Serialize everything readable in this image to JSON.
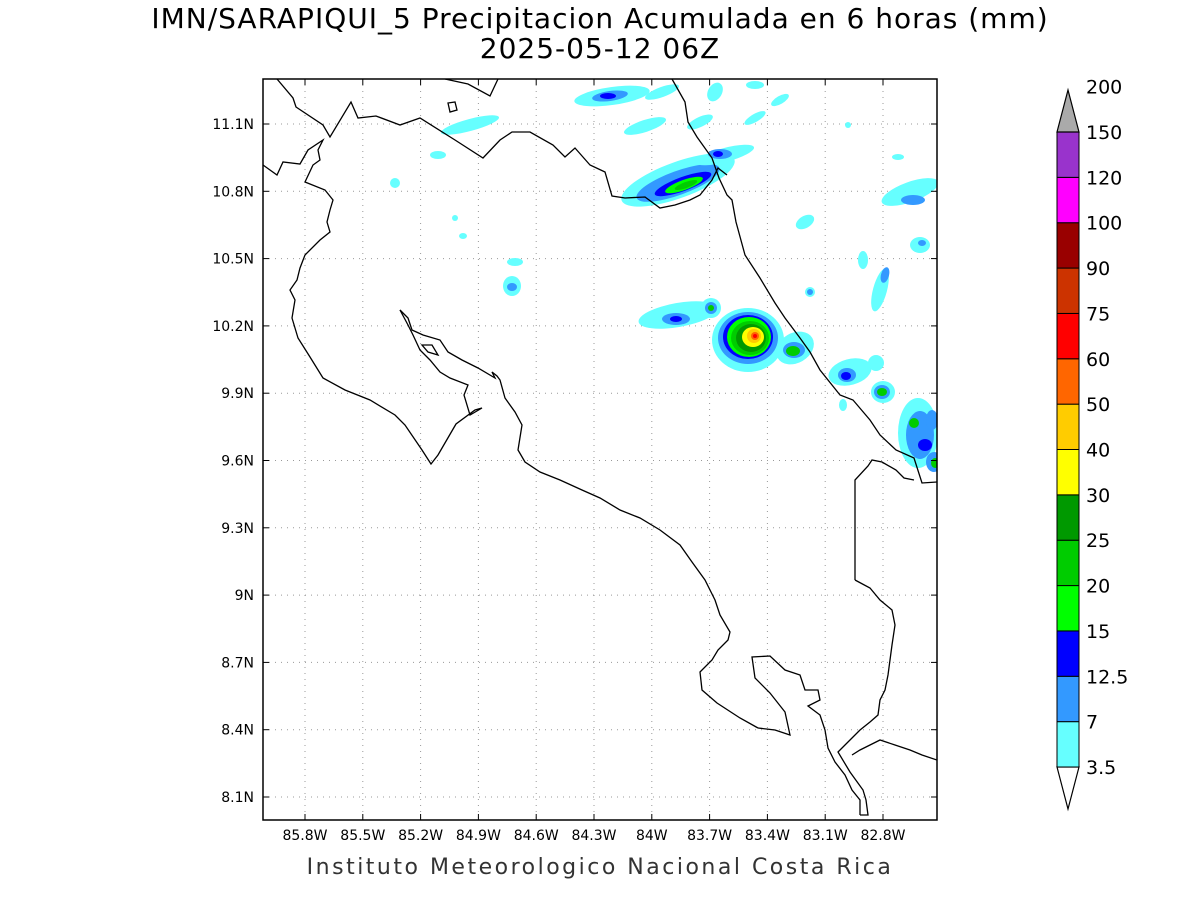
{
  "map": {
    "title_line1": "IMN/SARAPIQUI_5 Precipitacion Acumulada en 6 horas (mm)",
    "title_line2": "2025-05-12 06Z",
    "footer": "Instituto Meteorologico Nacional Costa Rica",
    "lon_labels": [
      "85.8W",
      "85.5W",
      "85.2W",
      "84.9W",
      "84.6W",
      "84.3W",
      "84W",
      "83.7W",
      "83.4W",
      "83.1W",
      "82.8W"
    ],
    "lat_labels": [
      "11.1N",
      "10.8N",
      "10.5N",
      "10.2N",
      "9.9N",
      "9.6N",
      "9.3N",
      "9N",
      "8.7N",
      "8.4N",
      "8.1N"
    ]
  },
  "colorbar": {
    "labels": [
      "3.5",
      "7",
      "12.5",
      "15",
      "20",
      "25",
      "30",
      "40",
      "50",
      "60",
      "75",
      "90",
      "100",
      "120",
      "150",
      "200"
    ],
    "colors": [
      "#66ffff",
      "#3399ff",
      "#0000ff",
      "#00ff00",
      "#00cc00",
      "#009900",
      "#ffff00",
      "#ffcc00",
      "#ff6600",
      "#ff0000",
      "#cc3300",
      "#990000",
      "#ff00ff",
      "#9933cc",
      "#f5f5f5",
      "#aaaaaa"
    ]
  }
}
